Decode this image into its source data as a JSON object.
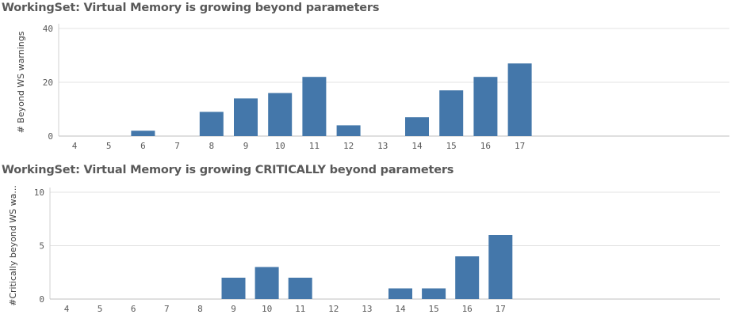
{
  "chart_data": [
    {
      "type": "bar",
      "title": "WorkingSet: Virtual Memory is growing beyond parameters",
      "xlabel": "",
      "ylabel": "# Beyond WS warnings",
      "categories": [
        "4",
        "5",
        "6",
        "7",
        "8",
        "9",
        "10",
        "11",
        "12",
        "13",
        "14",
        "15",
        "16",
        "17"
      ],
      "values": [
        0,
        0,
        2,
        0,
        9,
        14,
        16,
        22,
        4,
        0,
        7,
        17,
        22,
        27
      ],
      "ylim": [
        0,
        40
      ],
      "yticks": [
        "0",
        "20",
        "40"
      ],
      "grid": true,
      "color": "#4477aa"
    },
    {
      "type": "bar",
      "title": "WorkingSet: Virtual Memory is growing CRITICALLY beyond parameters",
      "xlabel": "",
      "ylabel": "#Critically beyond WS wa...",
      "categories": [
        "4",
        "5",
        "6",
        "7",
        "8",
        "9",
        "10",
        "11",
        "12",
        "13",
        "14",
        "15",
        "16",
        "17"
      ],
      "values": [
        0,
        0,
        0,
        0,
        0,
        2,
        3,
        2,
        0,
        0,
        1,
        1,
        4,
        6
      ],
      "ylim": [
        0,
        10
      ],
      "yticks": [
        "0",
        "5",
        "10"
      ],
      "grid": true,
      "color": "#4477aa"
    }
  ]
}
